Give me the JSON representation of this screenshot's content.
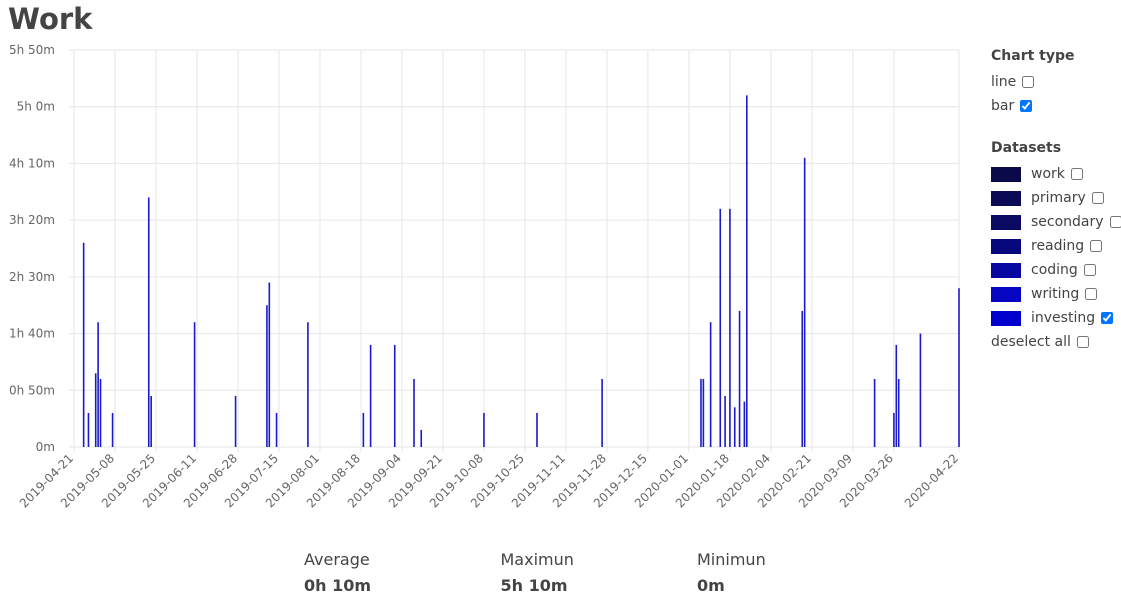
{
  "title": "Work",
  "chart_data": {
    "type": "bar",
    "x": [
      "2019-04-25",
      "2019-04-27",
      "2019-04-30",
      "2019-05-01",
      "2019-05-02",
      "2019-05-07",
      "2019-05-22",
      "2019-05-23",
      "2019-06-10",
      "2019-06-27",
      "2019-07-10",
      "2019-07-11",
      "2019-07-14",
      "2019-07-27",
      "2019-08-19",
      "2019-08-22",
      "2019-09-01",
      "2019-09-09",
      "2019-09-12",
      "2019-10-08",
      "2019-10-30",
      "2019-11-26",
      "2020-01-06",
      "2020-01-07",
      "2020-01-10",
      "2020-01-14",
      "2020-01-16",
      "2020-01-18",
      "2020-01-20",
      "2020-01-22",
      "2020-01-24",
      "2020-01-25",
      "2020-02-17",
      "2020-02-18",
      "2020-03-18",
      "2020-03-26",
      "2020-03-27",
      "2020-03-28",
      "2020-04-06",
      "2020-04-22"
    ],
    "values": [
      180,
      30,
      65,
      110,
      60,
      30,
      220,
      45,
      110,
      45,
      125,
      145,
      30,
      110,
      30,
      90,
      90,
      60,
      15,
      30,
      30,
      60,
      60,
      60,
      110,
      210,
      45,
      210,
      35,
      120,
      40,
      310,
      120,
      255,
      60,
      30,
      90,
      60,
      100,
      140
    ],
    "color": "#1a1ac8",
    "xlim": [
      "2019-04-21",
      "2020-04-22"
    ],
    "xticks": [
      "2019-04-21",
      "2019-05-08",
      "2019-05-25",
      "2019-06-11",
      "2019-06-28",
      "2019-07-15",
      "2019-08-01",
      "2019-08-18",
      "2019-09-04",
      "2019-09-21",
      "2019-10-08",
      "2019-10-25",
      "2019-11-11",
      "2019-11-28",
      "2019-12-15",
      "2020-01-01",
      "2020-01-18",
      "2020-02-04",
      "2020-02-21",
      "2020-03-09",
      "2020-03-26",
      "2020-04-22"
    ],
    "ylim": [
      0,
      350
    ],
    "yticks": [
      {
        "value": 0,
        "label": "0m"
      },
      {
        "value": 50,
        "label": "0h 50m"
      },
      {
        "value": 100,
        "label": "1h 40m"
      },
      {
        "value": 150,
        "label": "2h 30m"
      },
      {
        "value": 200,
        "label": "3h 20m"
      },
      {
        "value": 250,
        "label": "4h 10m"
      },
      {
        "value": 300,
        "label": "5h 0m"
      },
      {
        "value": 350,
        "label": "5h 50m"
      }
    ],
    "grid": true
  },
  "sidebar": {
    "chart_type_heading": "Chart type",
    "chart_types": [
      {
        "label": "line",
        "checked": false
      },
      {
        "label": "bar",
        "checked": true
      }
    ],
    "datasets_heading": "Datasets",
    "datasets": [
      {
        "name": "work",
        "color": "#0a0a48",
        "checked": false
      },
      {
        "name": "primary",
        "color": "#0b0b55",
        "checked": false
      },
      {
        "name": "secondary",
        "color": "#0a0a62",
        "checked": false
      },
      {
        "name": "reading",
        "color": "#07077c",
        "checked": false
      },
      {
        "name": "coding",
        "color": "#0707a2",
        "checked": false
      },
      {
        "name": "writing",
        "color": "#0505c2",
        "checked": false
      },
      {
        "name": "investing",
        "color": "#0000cc",
        "checked": true
      }
    ],
    "deselect_all": "deselect all"
  },
  "stats": [
    {
      "label": "Average",
      "value": "0h 10m"
    },
    {
      "label": "Maximun",
      "value": "5h 10m"
    },
    {
      "label": "Minimun",
      "value": "0m"
    }
  ]
}
